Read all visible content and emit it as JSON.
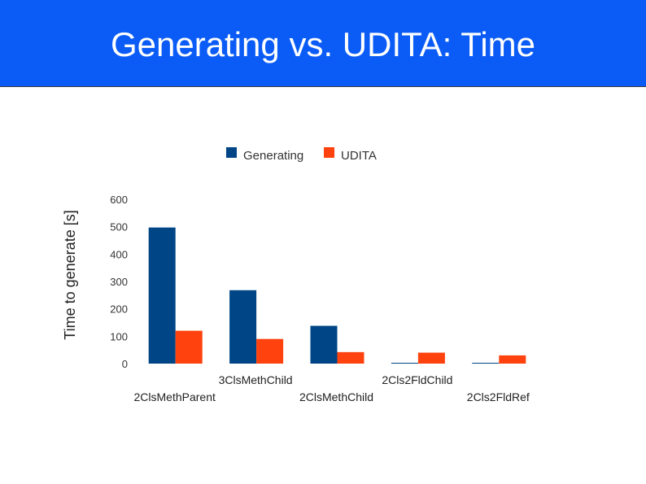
{
  "slide": {
    "title": "Generating vs. UDITA: Time"
  },
  "colors": {
    "header_bg": "#0b5cf6",
    "generating": "#004586",
    "udita": "#ff420e"
  },
  "chart_data": {
    "type": "bar",
    "title": "",
    "xlabel": "",
    "ylabel": "Time to generate [s]",
    "ylim": [
      0,
      600
    ],
    "yticks": [
      0,
      100,
      200,
      300,
      400,
      500,
      600
    ],
    "grid": false,
    "legend": "top",
    "categories": [
      "2ClsMethParent",
      "3ClsMethChild",
      "2ClsMethChild",
      "2Cls2FldChild",
      "2Cls2FldRef"
    ],
    "series": [
      {
        "name": "Generating",
        "color": "#004586",
        "values": [
          497,
          268,
          138,
          3,
          3
        ]
      },
      {
        "name": "UDITA",
        "color": "#ff420e",
        "values": [
          120,
          90,
          42,
          40,
          30
        ]
      }
    ]
  }
}
